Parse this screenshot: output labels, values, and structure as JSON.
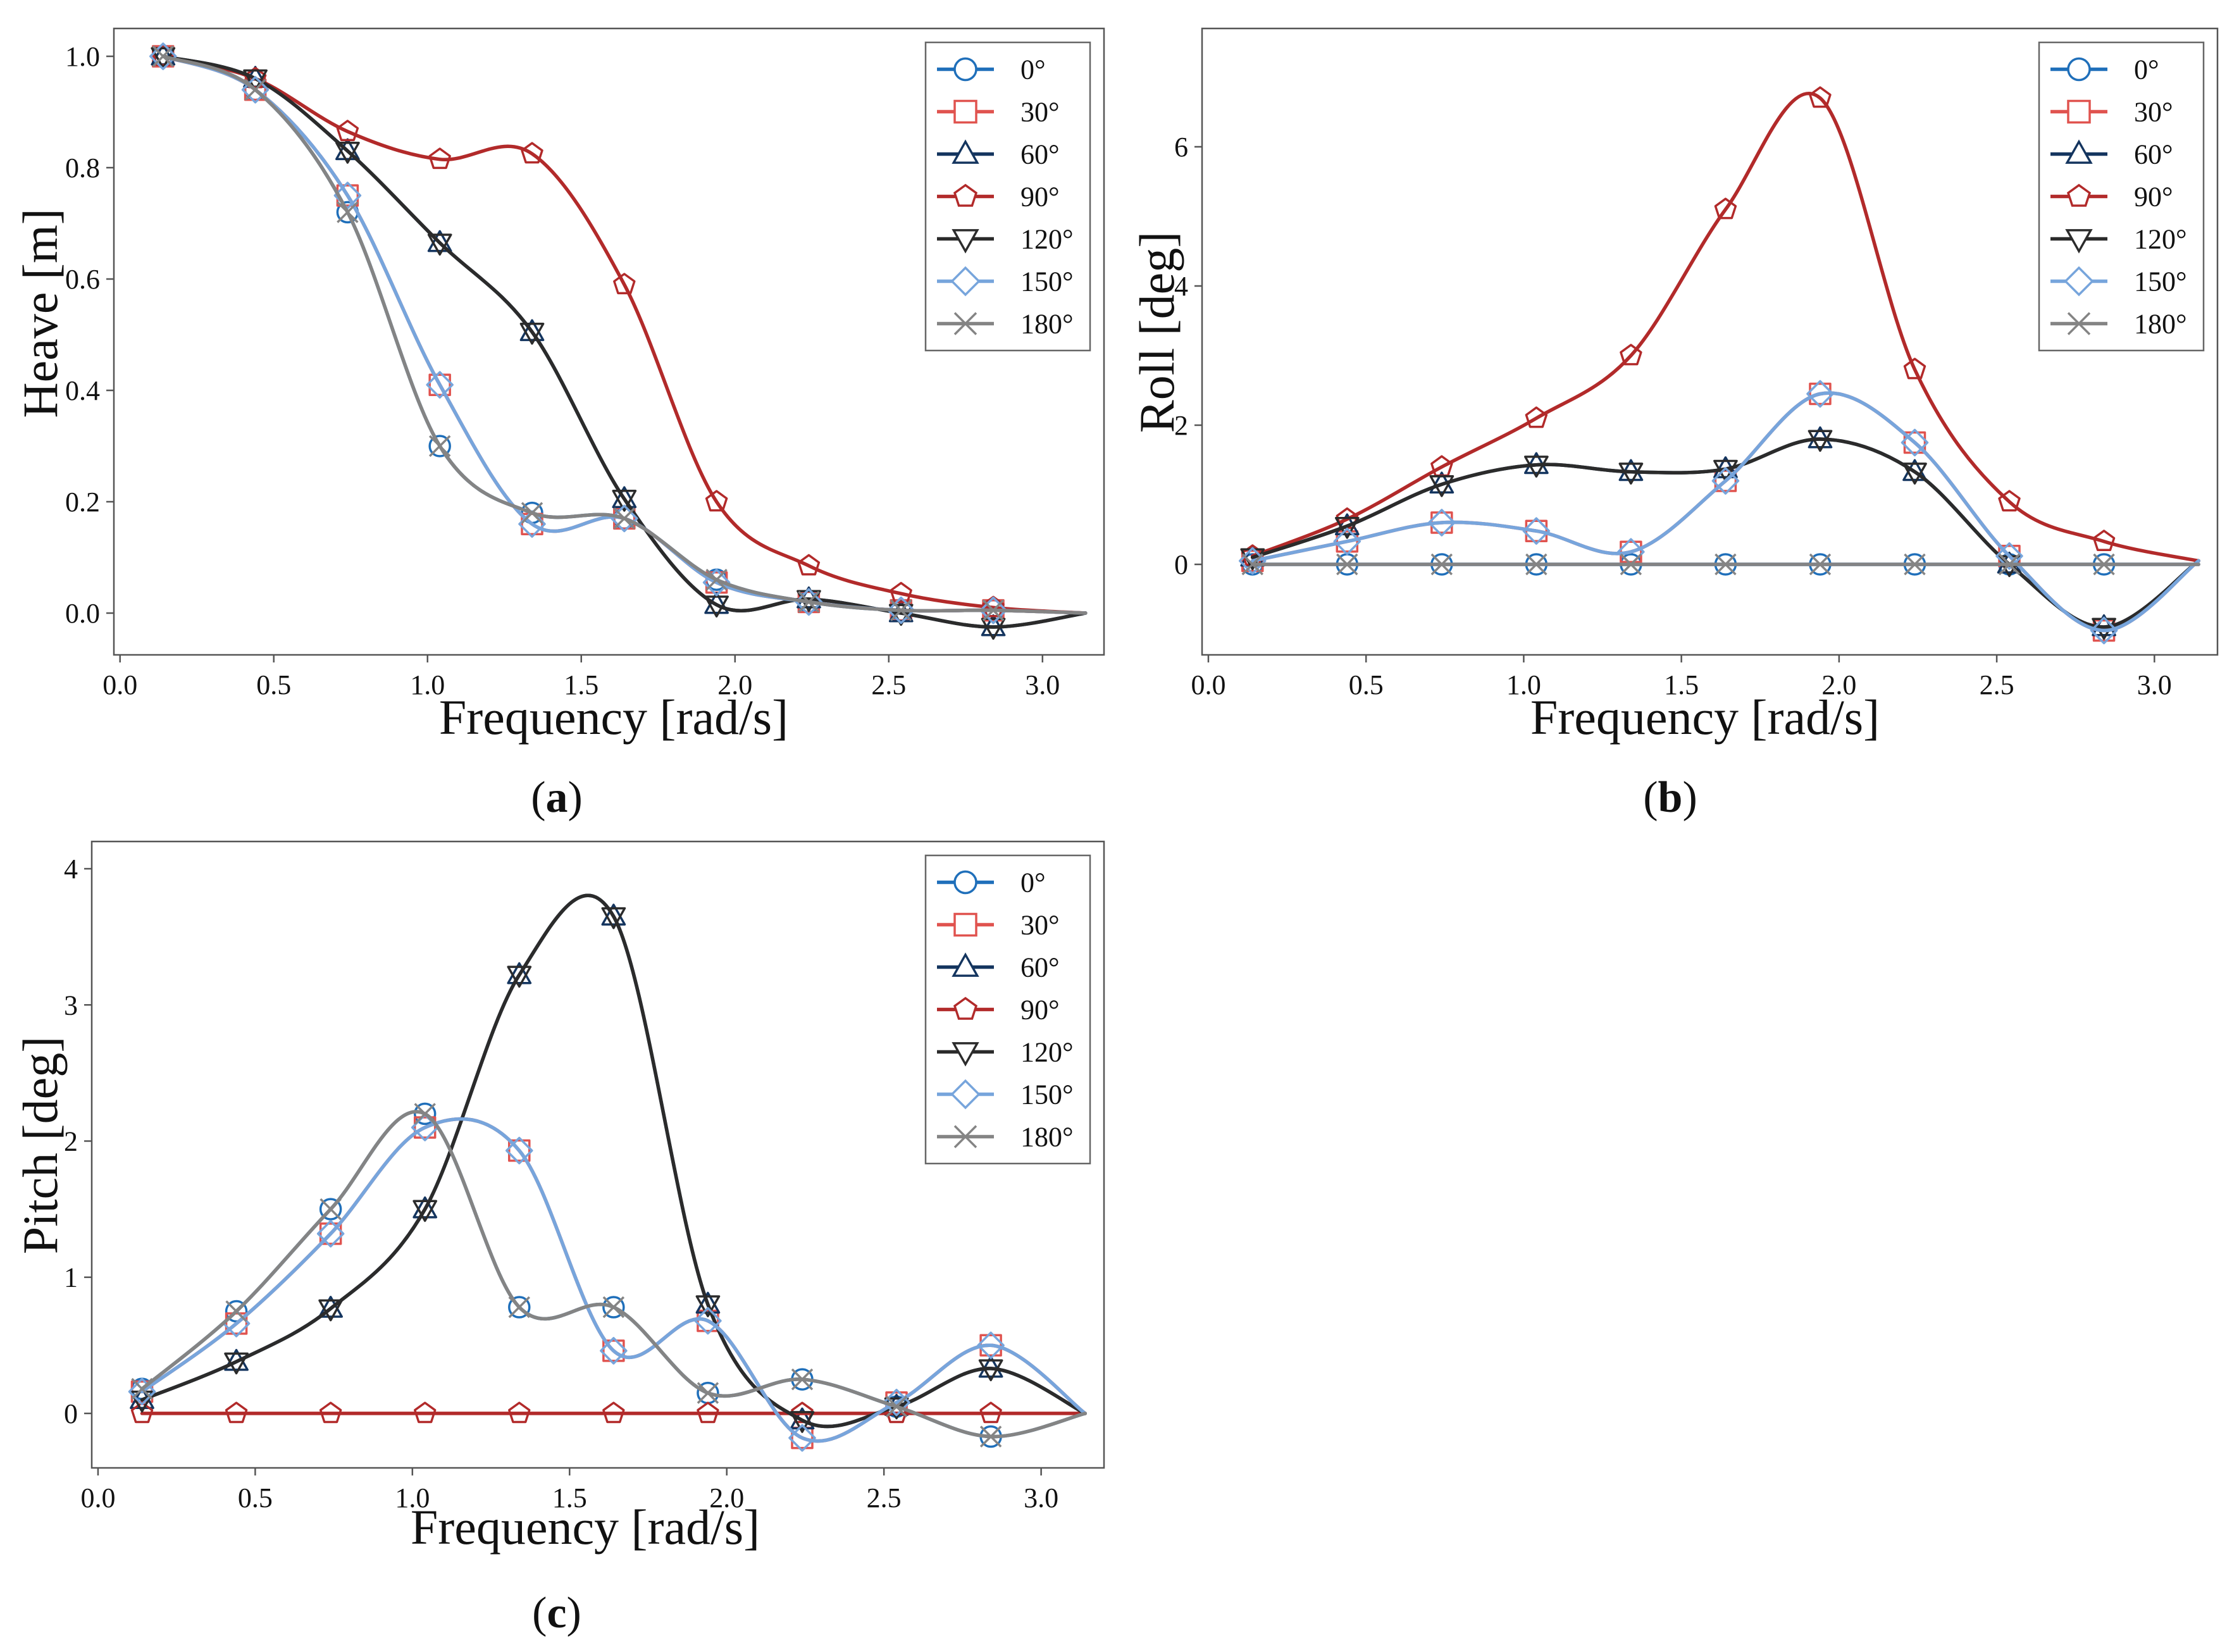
{
  "legend_labels": [
    "0°",
    "30°",
    "60°",
    "90°",
    "120°",
    "150°",
    "180°"
  ],
  "series_styles": [
    {
      "color": "#1f6fba",
      "marker": "circle"
    },
    {
      "color": "#e0534f",
      "marker": "square"
    },
    {
      "color": "#14355f",
      "marker": "triangle-up"
    },
    {
      "color": "#b22a2a",
      "marker": "pentagon"
    },
    {
      "color": "#2b2b2b",
      "marker": "triangle-down"
    },
    {
      "color": "#77a5dc",
      "marker": "diamond"
    },
    {
      "color": "#848484",
      "marker": "x"
    }
  ],
  "chart_data": [
    {
      "type": "line",
      "panel_label": "a",
      "xlabel": "Frequency [rad/s]",
      "ylabel": "Heave [m]",
      "xlim": [
        -0.02,
        3.2
      ],
      "ylim": [
        -0.075,
        1.05
      ],
      "xticks": [
        0.0,
        0.5,
        1.0,
        1.5,
        2.0,
        2.5,
        3.0
      ],
      "xtick_labels": [
        "0.0",
        "0.5",
        "1.0",
        "1.5",
        "2.0",
        "2.5",
        "3.0"
      ],
      "yticks": [
        0.0,
        0.2,
        0.4,
        0.6,
        0.8,
        1.0
      ],
      "ytick_labels": [
        "0.0",
        "0.2",
        "0.4",
        "0.6",
        "0.8",
        "1.0"
      ],
      "legend_position": "top-right",
      "grid": false,
      "x": [
        0.14,
        0.44,
        0.74,
        1.04,
        1.34,
        1.64,
        1.94,
        2.24,
        2.54,
        2.84,
        3.14
      ],
      "series": [
        {
          "name": "0°",
          "values": [
            1.0,
            0.94,
            0.72,
            0.3,
            0.18,
            0.17,
            0.06,
            0.02,
            0.005,
            0.005,
            0.0
          ]
        },
        {
          "name": "30°",
          "values": [
            1.0,
            0.94,
            0.75,
            0.41,
            0.16,
            0.17,
            0.055,
            0.02,
            0.005,
            0.005,
            0.0
          ]
        },
        {
          "name": "60°",
          "values": [
            1.0,
            0.96,
            0.83,
            0.665,
            0.505,
            0.205,
            0.015,
            0.025,
            0.0,
            -0.025,
            0.0
          ]
        },
        {
          "name": "90°",
          "values": [
            1.0,
            0.96,
            0.865,
            0.815,
            0.825,
            0.59,
            0.2,
            0.085,
            0.035,
            0.01,
            0.0
          ]
        },
        {
          "name": "120°",
          "values": [
            1.0,
            0.96,
            0.83,
            0.665,
            0.505,
            0.205,
            0.015,
            0.025,
            0.0,
            -0.025,
            0.0
          ]
        },
        {
          "name": "150°",
          "values": [
            1.0,
            0.94,
            0.75,
            0.41,
            0.16,
            0.17,
            0.055,
            0.02,
            0.005,
            0.005,
            0.0
          ]
        },
        {
          "name": "180°",
          "values": [
            1.0,
            0.94,
            0.72,
            0.3,
            0.18,
            0.17,
            0.06,
            0.02,
            0.005,
            0.005,
            0.0
          ]
        }
      ]
    },
    {
      "type": "line",
      "panel_label": "b",
      "xlabel": "Frequency [rad/s]",
      "ylabel": "Roll [deg]",
      "xlim": [
        -0.02,
        3.2
      ],
      "ylim": [
        -1.3,
        7.7
      ],
      "xticks": [
        0.0,
        0.5,
        1.0,
        1.5,
        2.0,
        2.5,
        3.0
      ],
      "xtick_labels": [
        "0.0",
        "0.5",
        "1.0",
        "1.5",
        "2.0",
        "2.5",
        "3.0"
      ],
      "yticks": [
        0,
        2,
        4,
        6
      ],
      "ytick_labels": [
        "0",
        "2",
        "4",
        "6"
      ],
      "legend_position": "top-right",
      "grid": false,
      "x": [
        0.14,
        0.44,
        0.74,
        1.04,
        1.34,
        1.64,
        1.94,
        2.24,
        2.54,
        2.84,
        3.14
      ],
      "series": [
        {
          "name": "0°",
          "values": [
            0,
            0,
            0,
            0,
            0,
            0,
            0,
            0,
            0,
            0,
            0
          ]
        },
        {
          "name": "30°",
          "values": [
            0.05,
            0.33,
            0.6,
            0.48,
            0.18,
            1.2,
            2.45,
            1.75,
            0.12,
            -0.95,
            0.05
          ]
        },
        {
          "name": "60°",
          "values": [
            0.1,
            0.55,
            1.15,
            1.43,
            1.33,
            1.37,
            1.8,
            1.33,
            0.0,
            -0.9,
            0.05
          ]
        },
        {
          "name": "90°",
          "values": [
            0.12,
            0.65,
            1.4,
            2.1,
            3.0,
            5.1,
            6.7,
            2.8,
            0.9,
            0.33,
            0.05
          ]
        },
        {
          "name": "120°",
          "values": [
            0.1,
            0.55,
            1.15,
            1.43,
            1.33,
            1.37,
            1.8,
            1.33,
            0.0,
            -0.9,
            0.05
          ]
        },
        {
          "name": "150°",
          "values": [
            0.05,
            0.33,
            0.6,
            0.48,
            0.18,
            1.2,
            2.45,
            1.75,
            0.12,
            -0.95,
            0.05
          ]
        },
        {
          "name": "180°",
          "values": [
            0,
            0,
            0,
            0,
            0,
            0,
            0,
            0,
            0,
            0,
            0
          ]
        }
      ]
    },
    {
      "type": "line",
      "panel_label": "c",
      "xlabel": "Frequency [rad/s]",
      "ylabel": "Pitch [deg]",
      "xlim": [
        -0.02,
        3.2
      ],
      "ylim": [
        -0.4,
        4.2
      ],
      "xticks": [
        0.0,
        0.5,
        1.0,
        1.5,
        2.0,
        2.5,
        3.0
      ],
      "xtick_labels": [
        "0.0",
        "0.5",
        "1.0",
        "1.5",
        "2.0",
        "2.5",
        "3.0"
      ],
      "yticks": [
        0,
        1,
        2,
        3,
        4
      ],
      "ytick_labels": [
        "0",
        "1",
        "2",
        "3",
        "4"
      ],
      "legend_position": "top-right",
      "grid": false,
      "x": [
        0.14,
        0.44,
        0.74,
        1.04,
        1.34,
        1.64,
        1.94,
        2.24,
        2.54,
        2.84,
        3.14
      ],
      "series": [
        {
          "name": "0°",
          "values": [
            0.18,
            0.75,
            1.5,
            2.2,
            0.78,
            0.78,
            0.15,
            0.25,
            0.05,
            -0.17,
            0.0
          ]
        },
        {
          "name": "30°",
          "values": [
            0.16,
            0.66,
            1.32,
            2.1,
            1.93,
            0.46,
            0.68,
            -0.18,
            0.08,
            0.5,
            0.0
          ]
        },
        {
          "name": "60°",
          "values": [
            0.1,
            0.38,
            0.77,
            1.5,
            3.22,
            3.65,
            0.8,
            -0.05,
            0.05,
            0.33,
            0.0
          ]
        },
        {
          "name": "90°",
          "values": [
            0,
            0,
            0,
            0,
            0,
            0,
            0,
            0,
            0,
            0,
            0
          ]
        },
        {
          "name": "120°",
          "values": [
            0.1,
            0.38,
            0.77,
            1.5,
            3.22,
            3.65,
            0.8,
            -0.05,
            0.05,
            0.33,
            0.0
          ]
        },
        {
          "name": "150°",
          "values": [
            0.16,
            0.66,
            1.32,
            2.1,
            1.93,
            0.46,
            0.68,
            -0.18,
            0.08,
            0.5,
            0.0
          ]
        },
        {
          "name": "180°",
          "values": [
            0.18,
            0.75,
            1.5,
            2.2,
            0.78,
            0.78,
            0.15,
            0.25,
            0.05,
            -0.17,
            0.0
          ]
        }
      ]
    }
  ]
}
